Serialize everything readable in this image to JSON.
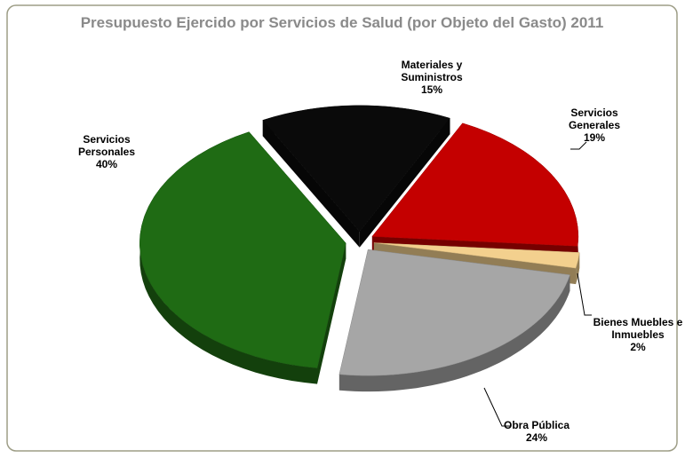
{
  "chart_data": {
    "type": "pie",
    "title": "Presupuesto Ejercido por Servicios de Salud (por Objeto del Gasto) 2011",
    "categories": [
      "Materiales y Suministros",
      "Servicios Generales",
      "Bienes Muebles e Inmuebles",
      "Obra Pública",
      "Servicios Personales"
    ],
    "values": [
      15,
      19,
      2,
      24,
      40
    ],
    "value_labels": [
      "15%",
      "19%",
      "2%",
      "24%",
      "40%"
    ],
    "colors": [
      "#0a0a0a",
      "#c40000",
      "#f3d08e",
      "#a6a6a6",
      "#1f6b14"
    ]
  }
}
